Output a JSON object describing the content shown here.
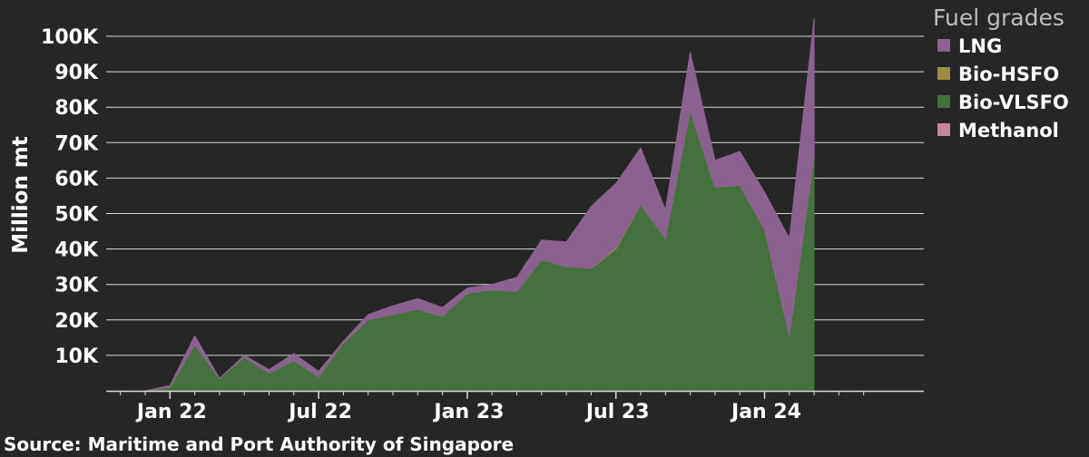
{
  "chart_data": {
    "type": "area",
    "stacked": true,
    "ylabel": "Million mt",
    "source": "Source: Maritime and Port Authority of Singapore",
    "legend_title": "Fuel grades",
    "legend_position": "top-right",
    "grid": true,
    "ylim": [
      0,
      100000
    ],
    "yticks": [
      10000,
      20000,
      30000,
      40000,
      50000,
      60000,
      70000,
      80000,
      90000,
      100000
    ],
    "ytick_labels": [
      "10K",
      "20K",
      "30K",
      "40K",
      "50K",
      "60K",
      "70K",
      "80K",
      "90K",
      "100K"
    ],
    "xticks": [
      {
        "label": "Jan 22",
        "index": 1
      },
      {
        "label": "Jul 22",
        "index": 7
      },
      {
        "label": "Jan 23",
        "index": 13
      },
      {
        "label": "Jul 23",
        "index": 19
      },
      {
        "label": "Jan 24",
        "index": 25
      }
    ],
    "x": [
      "Dec 21",
      "Jan 22",
      "Feb 22",
      "Mar 22",
      "Apr 22",
      "May 22",
      "Jun 22",
      "Jul 22",
      "Aug 22",
      "Sep 22",
      "Oct 22",
      "Nov 22",
      "Dec 22",
      "Jan 23",
      "Feb 23",
      "Mar 23",
      "Apr 23",
      "May 23",
      "Jun 23",
      "Jul 23",
      "Aug 23",
      "Sep 23",
      "Oct 23",
      "Nov 23",
      "Dec 23",
      "Jan 24",
      "Feb 24",
      "Mar 24"
    ],
    "series": [
      {
        "name": "Methanol",
        "color": "#c28799",
        "values": [
          0,
          0,
          0,
          0,
          0,
          0,
          0,
          0,
          0,
          0,
          0,
          0,
          0,
          0,
          0,
          0,
          0,
          0,
          0,
          0,
          0,
          0,
          0,
          0,
          0,
          0,
          0,
          0
        ]
      },
      {
        "name": "Bio-VLSFO",
        "color": "#44713e",
        "values": [
          0,
          1000,
          13000,
          3500,
          9500,
          5000,
          8500,
          4000,
          13500,
          20000,
          21500,
          23000,
          21000,
          27500,
          28500,
          28000,
          37000,
          35000,
          34500,
          40000,
          52500,
          43000,
          79000,
          57500,
          58000,
          45500,
          15500,
          66000
        ]
      },
      {
        "name": "Bio-HSFO",
        "color": "#9b8c47",
        "values": [
          0,
          0,
          0,
          0,
          0,
          0,
          0,
          0,
          0,
          0,
          0,
          0,
          0,
          0,
          0,
          0,
          0,
          0,
          0,
          500,
          0,
          0,
          0,
          0,
          0,
          0,
          0,
          0
        ]
      },
      {
        "name": "LNG",
        "color": "#8b628f",
        "values": [
          0,
          500,
          2500,
          0,
          500,
          1000,
          2000,
          1500,
          500,
          1500,
          2500,
          3000,
          2500,
          1500,
          1500,
          4000,
          5500,
          7000,
          17500,
          18000,
          16000,
          8000,
          16500,
          7500,
          9500,
          10500,
          27500,
          39000
        ]
      }
    ]
  }
}
